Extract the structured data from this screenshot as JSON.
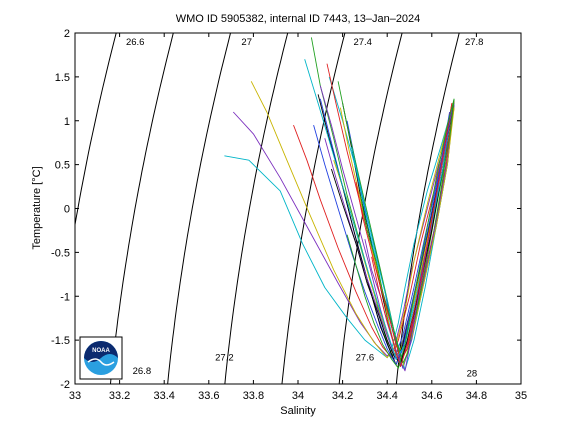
{
  "chart_data": {
    "type": "line",
    "title": "WMO ID 5905382, internal ID 7443, 13–Jan–2024",
    "xlabel": "Salinity",
    "ylabel": "Temperature [°C]",
    "xlim": [
      33,
      35
    ],
    "ylim": [
      -2,
      2
    ],
    "xticks": [
      "33",
      "33.2",
      "33.4",
      "33.6",
      "33.8",
      "34",
      "34.2",
      "34.4",
      "34.6",
      "34.8",
      "35"
    ],
    "yticks": [
      "-2",
      "-1.5",
      "-1",
      "-0.5",
      "0",
      "0.5",
      "1",
      "1.5",
      "2"
    ],
    "grid": false,
    "legend": "none",
    "density_contours": {
      "color": "#000000",
      "lines": [
        {
          "label": "",
          "sigma": 26.4,
          "label_x": 33.03,
          "label_y": 1.6
        },
        {
          "label": "26.6",
          "sigma": 26.6,
          "label_x": 33.27,
          "label_y": 1.9
        },
        {
          "label": "26.8",
          "sigma": 26.8,
          "label_x": 33.3,
          "label_y": -1.85
        },
        {
          "label": "27",
          "sigma": 27.0,
          "label_x": 33.77,
          "label_y": 1.9
        },
        {
          "label": "27.2",
          "sigma": 27.2,
          "label_x": 33.67,
          "label_y": -1.7
        },
        {
          "label": "27.4",
          "sigma": 27.4,
          "label_x": 34.29,
          "label_y": 1.9
        },
        {
          "label": "27.6",
          "sigma": 27.6,
          "label_x": 34.3,
          "label_y": -1.7
        },
        {
          "label": "27.8",
          "sigma": 27.8,
          "label_x": 34.79,
          "label_y": 1.9
        },
        {
          "label": "28",
          "sigma": 28.0,
          "label_x": 34.78,
          "label_y": -1.88
        }
      ]
    },
    "series": [
      {
        "color": "#00b5c8",
        "x": [
          33.67,
          33.78,
          33.92,
          34.02,
          34.12,
          34.22,
          34.3,
          34.36,
          34.4,
          34.42,
          34.45,
          34.48,
          34.52,
          34.58,
          34.64,
          34.68,
          34.7
        ],
        "y": [
          0.6,
          0.55,
          0.2,
          -0.4,
          -0.9,
          -1.25,
          -1.5,
          -1.62,
          -1.7,
          -1.6,
          -1.3,
          -0.9,
          -0.4,
          0.2,
          0.7,
          1.05,
          1.22
        ]
      },
      {
        "color": "#7b2fbe",
        "x": [
          33.71,
          33.8,
          33.92,
          34.05,
          34.18,
          34.28,
          34.35,
          34.4,
          34.43,
          34.47,
          34.51,
          34.57,
          34.63,
          34.68,
          34.7
        ],
        "y": [
          1.1,
          0.85,
          0.35,
          -0.25,
          -0.85,
          -1.3,
          -1.55,
          -1.68,
          -1.6,
          -1.2,
          -0.7,
          -0.1,
          0.5,
          0.95,
          1.18
        ]
      },
      {
        "color": "#c8b400",
        "x": [
          33.79,
          33.86,
          33.95,
          34.05,
          34.16,
          34.26,
          34.34,
          34.4,
          34.44,
          34.48,
          34.52,
          34.58,
          34.64,
          34.69
        ],
        "y": [
          1.45,
          1.1,
          0.55,
          -0.05,
          -0.7,
          -1.2,
          -1.52,
          -1.7,
          -1.55,
          -1.15,
          -0.6,
          0.05,
          0.65,
          1.15
        ]
      },
      {
        "color": "#e02020",
        "x": [
          33.98,
          34.04,
          34.1,
          34.18,
          34.26,
          34.33,
          34.38,
          34.42,
          34.45,
          34.5,
          34.55,
          34.61,
          34.66,
          34.69
        ],
        "y": [
          0.95,
          0.55,
          0.1,
          -0.45,
          -0.95,
          -1.35,
          -1.58,
          -1.7,
          -1.5,
          -1.0,
          -0.4,
          0.2,
          0.75,
          1.2
        ]
      },
      {
        "color": "#2040e0",
        "x": [
          34.1,
          34.14,
          34.19,
          34.25,
          34.31,
          34.36,
          34.4,
          34.43,
          34.47,
          34.52,
          34.58,
          34.64,
          34.68
        ],
        "y": [
          1.25,
          0.85,
          0.35,
          -0.25,
          -0.8,
          -1.25,
          -1.55,
          -1.72,
          -1.45,
          -0.9,
          -0.2,
          0.5,
          1.1
        ]
      },
      {
        "color": "#20a020",
        "x": [
          34.06,
          34.1,
          34.16,
          34.22,
          34.29,
          34.35,
          34.39,
          34.42,
          34.46,
          34.5,
          34.56,
          34.62,
          34.67,
          34.7
        ],
        "y": [
          1.95,
          1.4,
          0.8,
          0.15,
          -0.5,
          -1.05,
          -1.45,
          -1.68,
          -1.6,
          -1.2,
          -0.55,
          0.15,
          0.8,
          1.25
        ]
      },
      {
        "color": "#000000",
        "x": [
          34.2,
          34.24,
          34.28,
          34.33,
          34.37,
          34.41,
          34.44,
          34.46,
          34.5,
          34.55,
          34.6,
          34.65,
          34.69
        ],
        "y": [
          1.2,
          0.7,
          0.15,
          -0.4,
          -0.9,
          -1.35,
          -1.65,
          -1.8,
          -1.45,
          -0.85,
          -0.15,
          0.55,
          1.15
        ]
      },
      {
        "color": "#00b5c8",
        "x": [
          34.14,
          34.2,
          34.26,
          34.31,
          34.36,
          34.4,
          34.43,
          34.45,
          34.48,
          34.53,
          34.59,
          34.64,
          34.69
        ],
        "y": [
          1.5,
          1.0,
          0.45,
          -0.15,
          -0.7,
          -1.2,
          -1.55,
          -1.75,
          -1.5,
          -0.95,
          -0.3,
          0.4,
          1.1
        ]
      },
      {
        "color": "#7b2fbe",
        "x": [
          34.1,
          34.15,
          34.2,
          34.26,
          34.32,
          34.37,
          34.41,
          34.44,
          34.46,
          34.5,
          34.56,
          34.62,
          34.68
        ],
        "y": [
          1.4,
          0.95,
          0.45,
          -0.1,
          -0.65,
          -1.15,
          -1.5,
          -1.72,
          -1.62,
          -1.2,
          -0.55,
          0.2,
          0.95
        ]
      },
      {
        "color": "#c8b400",
        "x": [
          34.16,
          34.22,
          34.27,
          34.32,
          34.37,
          34.41,
          34.44,
          34.47,
          34.52,
          34.58,
          34.64,
          34.69
        ],
        "y": [
          0.55,
          0.1,
          -0.35,
          -0.8,
          -1.2,
          -1.5,
          -1.7,
          -1.55,
          -1.05,
          -0.35,
          0.4,
          1.1
        ]
      },
      {
        "color": "#e02020",
        "x": [
          34.13,
          34.17,
          34.22,
          34.28,
          34.34,
          34.39,
          34.43,
          34.46,
          34.5,
          34.55,
          34.61,
          34.66,
          34.7
        ],
        "y": [
          1.65,
          1.2,
          0.65,
          0.05,
          -0.55,
          -1.05,
          -1.45,
          -1.72,
          -1.5,
          -0.95,
          -0.25,
          0.45,
          1.15
        ]
      },
      {
        "color": "#2040e0",
        "x": [
          34.22,
          34.26,
          34.3,
          34.35,
          34.39,
          34.42,
          34.45,
          34.47,
          34.51,
          34.56,
          34.62,
          34.67,
          34.7
        ],
        "y": [
          1.0,
          0.5,
          0.0,
          -0.5,
          -0.95,
          -1.35,
          -1.62,
          -1.82,
          -1.5,
          -0.9,
          -0.2,
          0.5,
          1.2
        ]
      },
      {
        "color": "#20a020",
        "x": [
          34.18,
          34.22,
          34.27,
          34.32,
          34.37,
          34.41,
          34.44,
          34.46,
          34.49,
          34.54,
          34.6,
          34.65,
          34.69
        ],
        "y": [
          1.45,
          0.95,
          0.4,
          -0.15,
          -0.7,
          -1.15,
          -1.5,
          -1.74,
          -1.6,
          -1.1,
          -0.4,
          0.35,
          1.05
        ]
      },
      {
        "color": "#000000",
        "x": [
          34.09,
          34.14,
          34.2,
          34.26,
          34.32,
          34.37,
          34.41,
          34.44,
          34.47,
          34.52,
          34.58,
          34.64,
          34.69
        ],
        "y": [
          1.3,
          0.8,
          0.25,
          -0.35,
          -0.9,
          -1.35,
          -1.6,
          -1.78,
          -1.55,
          -1.0,
          -0.3,
          0.45,
          1.15
        ]
      },
      {
        "color": "#00b5c8",
        "x": [
          34.24,
          34.28,
          34.32,
          34.36,
          34.4,
          34.43,
          34.46,
          34.48,
          34.52,
          34.57,
          34.62,
          34.67,
          34.7
        ],
        "y": [
          0.7,
          0.25,
          -0.2,
          -0.65,
          -1.05,
          -1.4,
          -1.65,
          -1.84,
          -1.5,
          -0.9,
          -0.2,
          0.5,
          1.2
        ]
      },
      {
        "color": "#7b2fbe",
        "x": [
          34.12,
          34.17,
          34.23,
          34.29,
          34.35,
          34.4,
          34.43,
          34.46,
          34.5,
          34.56,
          34.62,
          34.67,
          34.7
        ],
        "y": [
          0.8,
          0.35,
          -0.15,
          -0.65,
          -1.1,
          -1.45,
          -1.65,
          -1.78,
          -1.45,
          -0.85,
          -0.15,
          0.55,
          1.18
        ]
      },
      {
        "color": "#c8b400",
        "x": [
          34.19,
          34.23,
          34.28,
          34.33,
          34.38,
          34.41,
          34.44,
          34.47,
          34.51,
          34.56,
          34.62,
          34.67,
          34.7
        ],
        "y": [
          1.15,
          0.65,
          0.1,
          -0.45,
          -0.95,
          -1.35,
          -1.62,
          -1.8,
          -1.48,
          -0.9,
          -0.2,
          0.5,
          1.15
        ]
      },
      {
        "color": "#e02020",
        "x": [
          34.26,
          34.29,
          34.33,
          34.37,
          34.41,
          34.44,
          34.46,
          34.49,
          34.53,
          34.58,
          34.63,
          34.68,
          34.7
        ],
        "y": [
          0.3,
          -0.1,
          -0.5,
          -0.9,
          -1.25,
          -1.55,
          -1.72,
          -1.6,
          -1.15,
          -0.5,
          0.2,
          0.85,
          1.22
        ]
      },
      {
        "color": "#2040e0",
        "x": [
          34.07,
          34.12,
          34.18,
          34.24,
          34.3,
          34.36,
          34.4,
          34.44,
          34.47,
          34.51,
          34.57,
          34.63,
          34.68
        ],
        "y": [
          0.95,
          0.5,
          0.0,
          -0.5,
          -0.95,
          -1.35,
          -1.6,
          -1.78,
          -1.6,
          -1.1,
          -0.4,
          0.35,
          1.05
        ]
      },
      {
        "color": "#20a020",
        "x": [
          34.28,
          34.31,
          34.35,
          34.38,
          34.42,
          34.45,
          34.47,
          34.49,
          34.53,
          34.58,
          34.63,
          34.68,
          34.7
        ],
        "y": [
          0.15,
          -0.25,
          -0.6,
          -0.95,
          -1.3,
          -1.58,
          -1.76,
          -1.66,
          -1.2,
          -0.55,
          0.15,
          0.8,
          1.24
        ]
      },
      {
        "color": "#000000",
        "x": [
          34.15,
          34.2,
          34.26,
          34.31,
          34.36,
          34.4,
          34.43,
          34.46,
          34.49,
          34.54,
          34.6,
          34.65,
          34.69
        ],
        "y": [
          0.45,
          0.05,
          -0.4,
          -0.85,
          -1.2,
          -1.5,
          -1.68,
          -1.76,
          -1.5,
          -0.95,
          -0.25,
          0.45,
          1.12
        ]
      },
      {
        "color": "#00b5c8",
        "x": [
          34.03,
          34.09,
          34.16,
          34.23,
          34.3,
          34.36,
          34.41,
          34.44,
          34.48,
          34.53,
          34.59,
          34.65,
          34.69
        ],
        "y": [
          1.7,
          1.2,
          0.6,
          0.0,
          -0.6,
          -1.1,
          -1.48,
          -1.72,
          -1.55,
          -1.0,
          -0.3,
          0.45,
          1.15
        ]
      },
      {
        "color": "#7b2fbe",
        "x": [
          34.3,
          34.33,
          34.37,
          34.4,
          34.43,
          34.46,
          34.48,
          34.51,
          34.55,
          34.6,
          34.65,
          34.69
        ],
        "y": [
          -0.35,
          -0.7,
          -1.0,
          -1.3,
          -1.55,
          -1.75,
          -1.85,
          -1.45,
          -0.85,
          -0.15,
          0.55,
          1.12
        ]
      },
      {
        "color": "#e02020",
        "x": [
          34.33,
          34.36,
          34.39,
          34.42,
          34.44,
          34.46,
          34.49,
          34.53,
          34.58,
          34.63,
          34.67,
          34.69
        ],
        "y": [
          -0.55,
          -0.9,
          -1.2,
          -1.45,
          -1.65,
          -1.8,
          -1.55,
          -1.05,
          -0.4,
          0.3,
          0.9,
          1.2
        ]
      },
      {
        "color": "#20a020",
        "x": [
          34.22,
          34.26,
          34.3,
          34.34,
          34.38,
          34.42,
          34.45,
          34.48,
          34.52,
          34.57,
          34.62,
          34.67,
          34.7
        ],
        "y": [
          -0.3,
          -0.65,
          -1.0,
          -1.3,
          -1.55,
          -1.72,
          -1.82,
          -1.55,
          -1.0,
          -0.35,
          0.35,
          0.95,
          1.25
        ]
      }
    ]
  },
  "logo": {
    "text": "NOAA"
  }
}
